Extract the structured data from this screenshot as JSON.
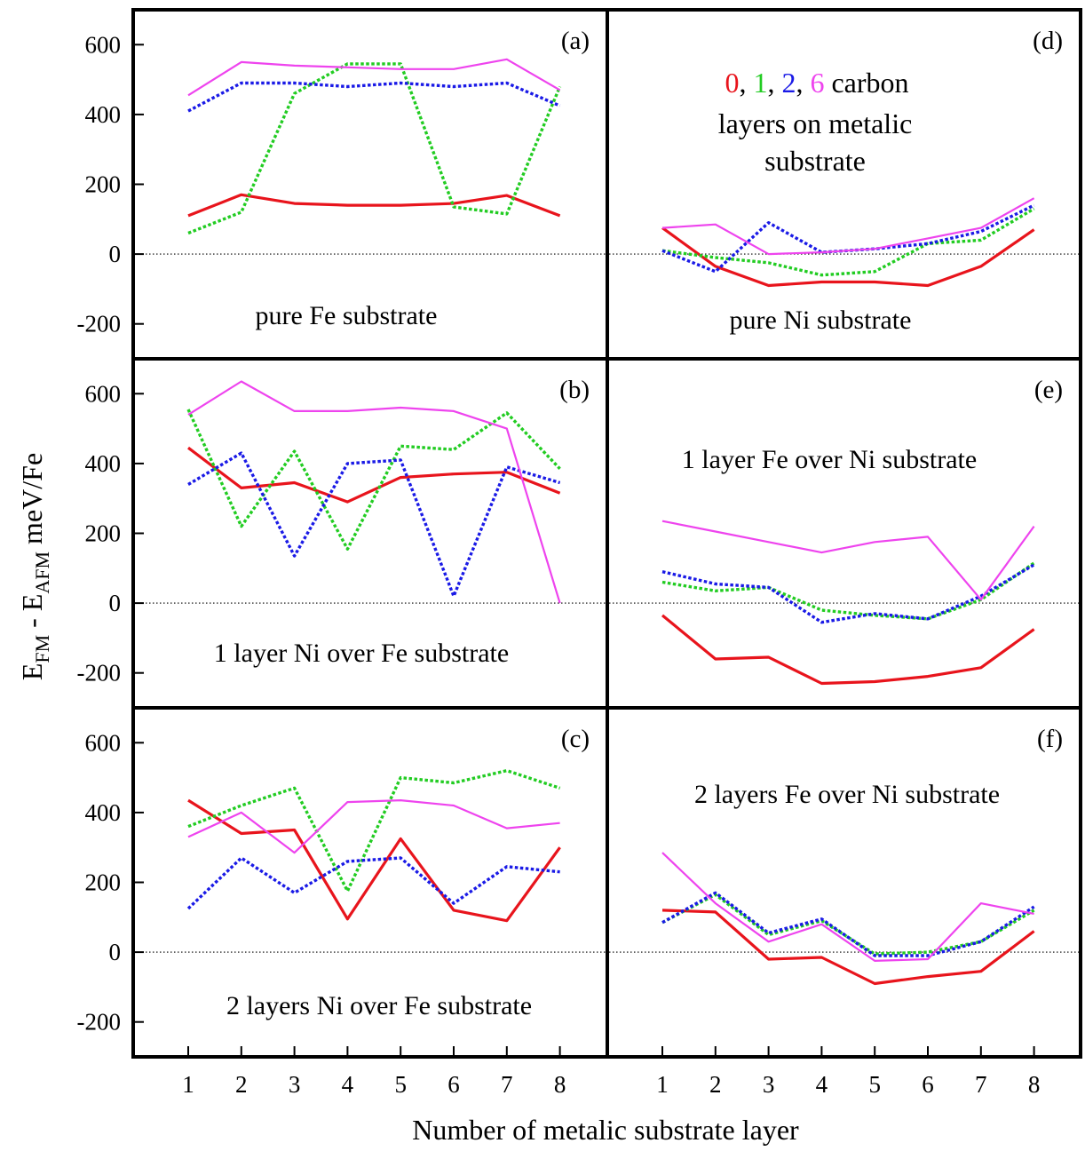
{
  "figure": {
    "ylabel_main": "E",
    "ylabel_sub1": "FM",
    "ylabel_mid": " - E",
    "ylabel_sub2": "AFM",
    "ylabel_unit": " meV/Fe",
    "xlabel": "Number of metalic substrate layer",
    "legend": {
      "n0": "0",
      "sep1": ", ",
      "n1": "1",
      "sep2": ", ",
      "n2": "2",
      "sep3": ", ",
      "n6": "6",
      "suffix": " carbon",
      "line2": "layers on metalic",
      "line3": "substrate"
    }
  },
  "series_styles": [
    {
      "key": "c0",
      "color": "#e8141c",
      "dash": "solid",
      "width": 3.2
    },
    {
      "key": "c1",
      "color": "#22cc22",
      "dash": "dotted",
      "width": 3.4
    },
    {
      "key": "c2",
      "color": "#1a1ae6",
      "dash": "dotted",
      "width": 3.4
    },
    {
      "key": "c6",
      "color": "#ee44ee",
      "dash": "solid",
      "width": 2.2
    }
  ],
  "chart_data": [
    {
      "type": "line",
      "id": "a",
      "label": "(a)",
      "annotation": "pure Fe substrate",
      "x": [
        1,
        2,
        3,
        4,
        5,
        6,
        7,
        8
      ],
      "ylim": [
        -300,
        700
      ],
      "yticks": [
        -200,
        0,
        200,
        400,
        600
      ],
      "xticks": [],
      "series": [
        {
          "values": [
            110,
            170,
            145,
            140,
            140,
            145,
            168,
            110
          ]
        },
        {
          "values": [
            60,
            120,
            460,
            545,
            545,
            135,
            115,
            480
          ]
        },
        {
          "values": [
            410,
            490,
            490,
            480,
            490,
            480,
            490,
            425
          ]
        },
        {
          "values": [
            455,
            550,
            540,
            535,
            530,
            530,
            558,
            470
          ]
        }
      ]
    },
    {
      "type": "line",
      "id": "b",
      "label": "(b)",
      "annotation": "1 layer Ni over Fe substrate",
      "x": [
        1,
        2,
        3,
        4,
        5,
        6,
        7,
        8
      ],
      "ylim": [
        -300,
        700
      ],
      "yticks": [
        -200,
        0,
        200,
        400,
        600
      ],
      "xticks": [],
      "series": [
        {
          "values": [
            445,
            330,
            345,
            290,
            360,
            370,
            375,
            315
          ]
        },
        {
          "values": [
            555,
            220,
            435,
            155,
            450,
            440,
            545,
            385
          ]
        },
        {
          "values": [
            340,
            430,
            135,
            400,
            410,
            20,
            390,
            345
          ]
        },
        {
          "values": [
            540,
            635,
            550,
            550,
            560,
            550,
            500,
            0
          ]
        }
      ]
    },
    {
      "type": "line",
      "id": "c",
      "label": "(c)",
      "annotation": "2 layers Ni over Fe substrate",
      "x": [
        1,
        2,
        3,
        4,
        5,
        6,
        7,
        8
      ],
      "ylim": [
        -300,
        700
      ],
      "yticks": [
        -200,
        0,
        200,
        400,
        600
      ],
      "xticks": [
        "1",
        "2",
        "3",
        "4",
        "5",
        "6",
        "7",
        "8"
      ],
      "series": [
        {
          "values": [
            435,
            340,
            350,
            95,
            325,
            120,
            90,
            300
          ]
        },
        {
          "values": [
            360,
            420,
            470,
            175,
            500,
            485,
            520,
            470
          ]
        },
        {
          "values": [
            125,
            270,
            170,
            260,
            270,
            140,
            245,
            230
          ]
        },
        {
          "values": [
            330,
            400,
            285,
            430,
            435,
            420,
            355,
            370
          ]
        }
      ]
    },
    {
      "type": "line",
      "id": "d",
      "label": "(d)",
      "annotation": "pure Ni substrate",
      "x": [
        1,
        2,
        3,
        4,
        5,
        6,
        7,
        8
      ],
      "ylim": [
        -300,
        700
      ],
      "yticks": [],
      "xticks": [],
      "series": [
        {
          "values": [
            75,
            -35,
            -90,
            -80,
            -80,
            -90,
            -35,
            70
          ]
        },
        {
          "values": [
            10,
            -10,
            -25,
            -60,
            -50,
            30,
            40,
            130
          ]
        },
        {
          "values": [
            10,
            -50,
            90,
            5,
            15,
            30,
            65,
            140
          ]
        },
        {
          "values": [
            75,
            85,
            0,
            5,
            15,
            45,
            75,
            160
          ]
        }
      ]
    },
    {
      "type": "line",
      "id": "e",
      "label": "(e)",
      "annotation": "1 layer Fe over Ni substrate",
      "x": [
        1,
        2,
        3,
        4,
        5,
        6,
        7,
        8
      ],
      "ylim": [
        -300,
        700
      ],
      "yticks": [],
      "xticks": [],
      "series": [
        {
          "values": [
            -35,
            -160,
            -155,
            -230,
            -225,
            -210,
            -185,
            -75
          ]
        },
        {
          "values": [
            60,
            35,
            45,
            -20,
            -35,
            -45,
            10,
            115
          ]
        },
        {
          "values": [
            90,
            55,
            45,
            -55,
            -30,
            -45,
            20,
            110
          ]
        },
        {
          "values": [
            235,
            205,
            175,
            145,
            175,
            190,
            10,
            220
          ]
        }
      ]
    },
    {
      "type": "line",
      "id": "f",
      "label": "(f)",
      "annotation": "2 layers Fe over Ni substrate",
      "x": [
        1,
        2,
        3,
        4,
        5,
        6,
        7,
        8
      ],
      "ylim": [
        -300,
        700
      ],
      "yticks": [],
      "xticks": [
        "1",
        "2",
        "3",
        "4",
        "5",
        "6",
        "7",
        "8"
      ],
      "series": [
        {
          "values": [
            120,
            115,
            -20,
            -15,
            -90,
            -70,
            -55,
            60
          ]
        },
        {
          "values": [
            85,
            165,
            50,
            90,
            -5,
            0,
            30,
            120
          ]
        },
        {
          "values": [
            85,
            170,
            55,
            95,
            -10,
            -10,
            30,
            130
          ]
        },
        {
          "values": [
            285,
            140,
            30,
            80,
            -25,
            -20,
            140,
            110
          ]
        }
      ]
    }
  ]
}
